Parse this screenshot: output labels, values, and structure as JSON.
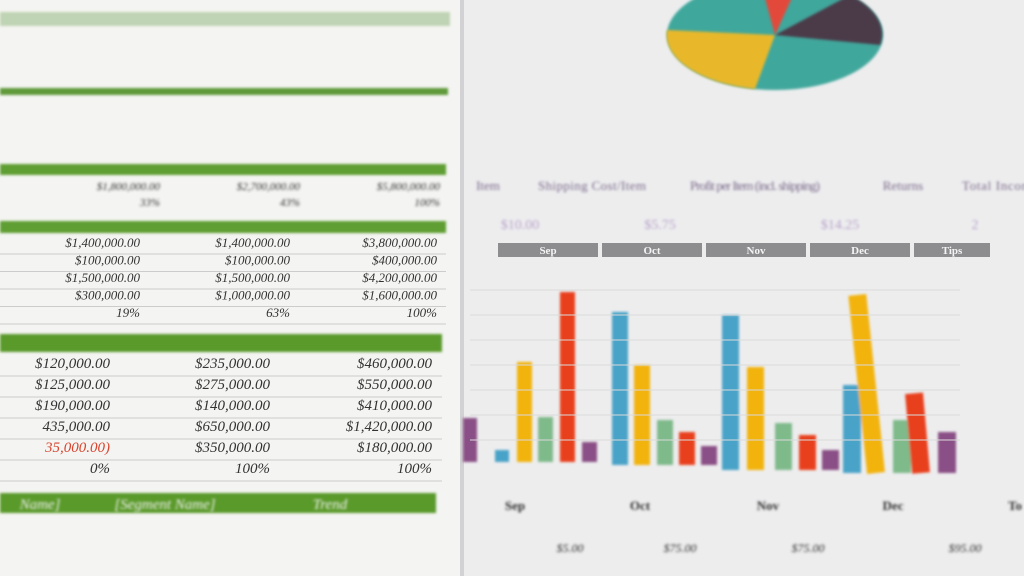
{
  "left_sheet": {
    "top_row": [
      "$1,800,000.00",
      "$2,700,000.00",
      "$5,800,000.00"
    ],
    "top_pct": [
      "33%",
      "43%",
      "100%"
    ],
    "table1": {
      "rows": [
        [
          "$1,400,000.00",
          "$1,400,000.00",
          "$3,800,000.00"
        ],
        [
          "$100,000.00",
          "$100,000.00",
          "$400,000.00"
        ],
        [
          "$1,500,000.00",
          "$1,500,000.00",
          "$4,200,000.00"
        ],
        [
          "$300,000.00",
          "$1,000,000.00",
          "$1,600,000.00"
        ],
        [
          "19%",
          "63%",
          "100%"
        ]
      ]
    },
    "table2": {
      "rows": [
        [
          "$120,000.00",
          "$235,000.00",
          "$460,000.00"
        ],
        [
          "$125,000.00",
          "$275,000.00",
          "$550,000.00"
        ],
        [
          "$190,000.00",
          "$140,000.00",
          "$410,000.00"
        ],
        [
          "435,000.00",
          "$650,000.00",
          "$1,420,000.00"
        ],
        [
          "35,000.00)",
          "$350,000.00",
          "$180,000.00"
        ],
        [
          "0%",
          "100%",
          "100%"
        ]
      ]
    },
    "footer_headers": [
      "Name]",
      "[Segment Name]",
      "Trend"
    ]
  },
  "right_sheet": {
    "headers": [
      "Item",
      "Shipping Cost/Item",
      "Profit per Item (incl. shipping)",
      "Returns",
      "Total Incon"
    ],
    "values": [
      "$10.00",
      "$5.75",
      "$14.25",
      "2"
    ],
    "month_headers": [
      "Sep",
      "Oct",
      "Nov",
      "Dec",
      "Tips"
    ],
    "bottom_headers": [
      "Sep",
      "Oct",
      "Nov",
      "Dec",
      "To"
    ],
    "bottom_values": [
      "$5.00",
      "$75.00",
      "$75.00",
      "$95.00"
    ]
  }
}
